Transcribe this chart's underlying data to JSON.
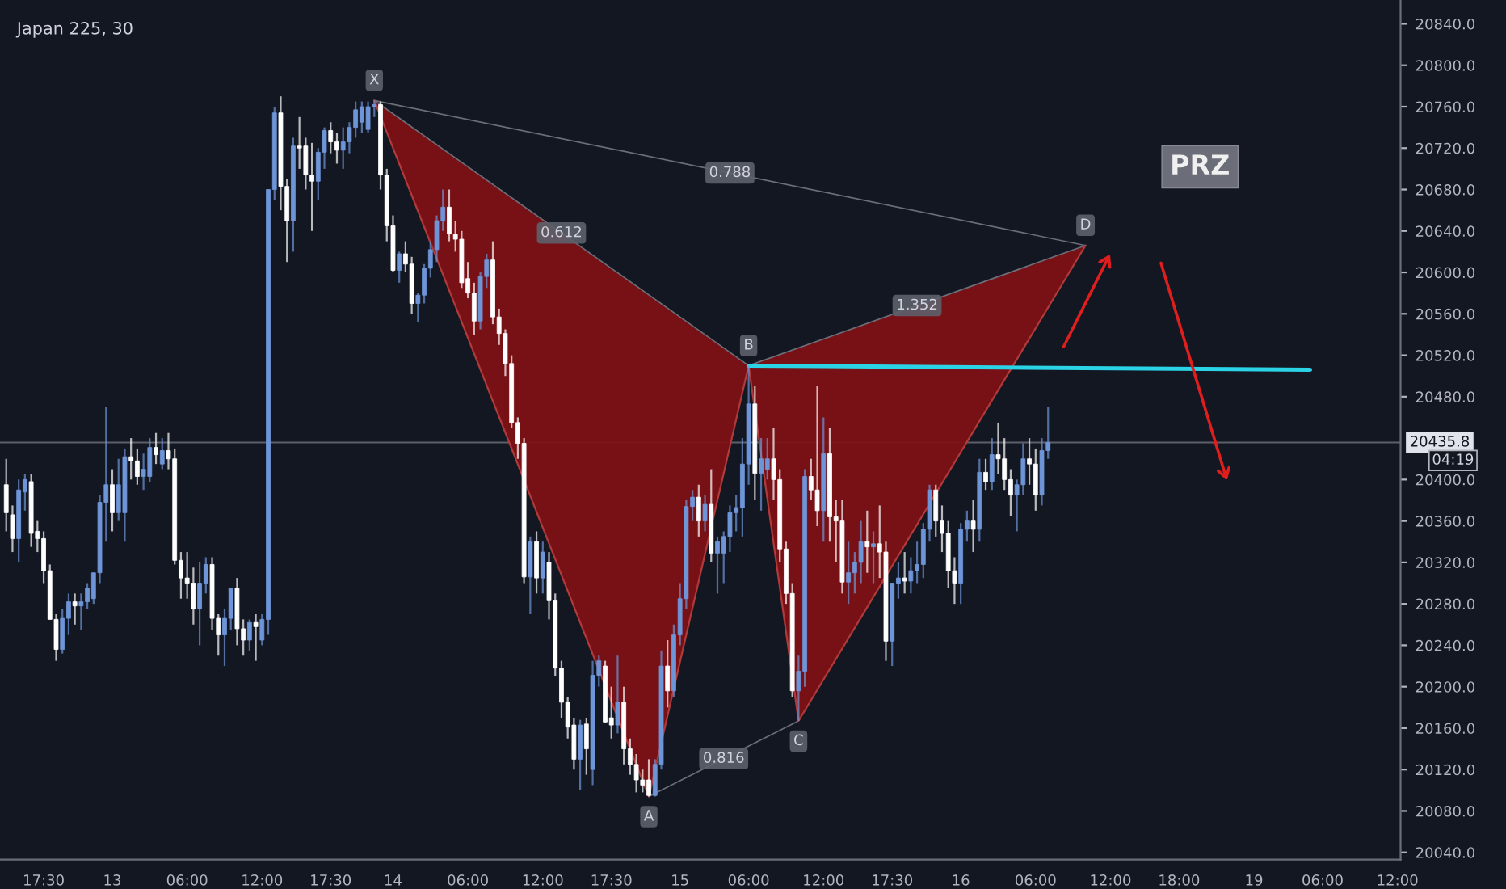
{
  "chart_data": {
    "type": "candlestick",
    "title": "Japan 225, 30",
    "categories": [
      null,
      null,
      null,
      null,
      null,
      null,
      "17:30",
      null,
      null,
      null,
      null,
      null,
      null,
      null,
      null,
      null,
      null,
      "13",
      null,
      null,
      null,
      null,
      null,
      null,
      null,
      null,
      null,
      null,
      null,
      "06:00",
      null,
      null,
      null,
      null,
      null,
      null,
      null,
      null,
      null,
      null,
      null,
      "12:00",
      null,
      null,
      null,
      null,
      null,
      null,
      null,
      null,
      null,
      null,
      "17:30",
      null,
      null,
      null,
      null,
      null,
      null,
      null,
      null,
      null,
      "14",
      null,
      null,
      null,
      null,
      null,
      null,
      null,
      null,
      null,
      null,
      null,
      "06:00",
      null,
      null,
      null,
      null,
      null,
      null,
      null,
      null,
      null,
      null,
      null,
      "12:00",
      null,
      null,
      null,
      null,
      null,
      null,
      null,
      null,
      null,
      null,
      "17:30",
      null,
      null,
      null,
      null,
      null,
      null,
      null,
      null,
      null,
      null,
      "15",
      null,
      null,
      null,
      null,
      null,
      null,
      null,
      null,
      null,
      null,
      "06:00",
      null,
      null,
      null,
      null,
      null,
      null,
      null,
      null,
      null,
      null,
      null,
      "12:00",
      null,
      null,
      null,
      null,
      null,
      null,
      null,
      null,
      null,
      null,
      "17:30",
      null,
      null,
      null,
      null,
      null,
      null,
      null,
      null,
      null,
      null,
      "16",
      null,
      null,
      null,
      null,
      null,
      null,
      null,
      null,
      null,
      null,
      null,
      "06:00",
      null,
      null,
      null,
      null,
      null,
      null,
      null,
      null,
      null,
      null,
      null,
      "12:00",
      null,
      null,
      null,
      null,
      null,
      null,
      null,
      null,
      null,
      null,
      "18:00",
      null,
      null,
      null,
      null,
      null,
      null,
      null,
      null,
      null,
      null,
      null,
      "19",
      null,
      null,
      null,
      null,
      null,
      null,
      null,
      null,
      null,
      null,
      "06:00",
      null,
      null,
      null,
      null,
      null,
      null,
      null,
      null,
      null,
      null,
      null,
      "12:00"
    ],
    "ohlc": [
      [
        20395,
        20420,
        20350,
        20368
      ],
      [
        20366,
        20375,
        20330,
        20343
      ],
      [
        20343,
        20400,
        20320,
        20390
      ],
      [
        20388,
        20405,
        20370,
        20400
      ],
      [
        20398,
        20405,
        20335,
        20348
      ],
      [
        20350,
        20360,
        20330,
        20343
      ],
      [
        20343,
        20350,
        20300,
        20312
      ],
      [
        20312,
        20318,
        20265,
        20265
      ],
      [
        20265,
        20270,
        20225,
        20236
      ],
      [
        20236,
        20275,
        20232,
        20266
      ],
      [
        20266,
        20290,
        20250,
        20282
      ],
      [
        20282,
        20290,
        20260,
        20278
      ],
      [
        20278,
        20290,
        20255,
        20282
      ],
      [
        20282,
        20300,
        20275,
        20295
      ],
      [
        20285,
        20310,
        20280,
        20310
      ],
      [
        20310,
        20385,
        20300,
        20378
      ],
      [
        20378,
        20470,
        20340,
        20395
      ],
      [
        20395,
        20410,
        20350,
        20368
      ],
      [
        20368,
        20420,
        20360,
        20395
      ],
      [
        20368,
        20430,
        20340,
        20422
      ],
      [
        20422,
        20440,
        20400,
        20418
      ],
      [
        20418,
        20430,
        20395,
        20403
      ],
      [
        20403,
        20425,
        20390,
        20410
      ],
      [
        20403,
        20440,
        20398,
        20431
      ],
      [
        20431,
        20445,
        20415,
        20424
      ],
      [
        20415,
        20440,
        20410,
        20428
      ],
      [
        20428,
        20445,
        20410,
        20420
      ],
      [
        20420,
        20430,
        20318,
        20322
      ],
      [
        20322,
        20330,
        20285,
        20305
      ],
      [
        20305,
        20330,
        20285,
        20300
      ],
      [
        20300,
        20315,
        20260,
        20275
      ],
      [
        20275,
        20320,
        20240,
        20300
      ],
      [
        20300,
        20325,
        20290,
        20318
      ],
      [
        20318,
        20325,
        20255,
        20266
      ],
      [
        20266,
        20270,
        20230,
        20250
      ],
      [
        20250,
        20275,
        20220,
        20266
      ],
      [
        20266,
        20295,
        20255,
        20295
      ],
      [
        20295,
        20305,
        20240,
        20256
      ],
      [
        20256,
        20265,
        20230,
        20245
      ],
      [
        20245,
        20265,
        20235,
        20262
      ],
      [
        20262,
        20270,
        20225,
        20258
      ],
      [
        20245,
        20270,
        20240,
        20265
      ],
      [
        20265,
        20680,
        20250,
        20680
      ],
      [
        20680,
        20760,
        20670,
        20754
      ],
      [
        20754,
        20770,
        20660,
        20683
      ],
      [
        20683,
        20690,
        20610,
        20650
      ],
      [
        20650,
        20730,
        20620,
        20722
      ],
      [
        20722,
        20750,
        20700,
        20720
      ],
      [
        20722,
        20730,
        20680,
        20694
      ],
      [
        20694,
        20725,
        20640,
        20688
      ],
      [
        20688,
        20720,
        20670,
        20716
      ],
      [
        20716,
        20740,
        20700,
        20737
      ],
      [
        20737,
        20745,
        20715,
        20726
      ],
      [
        20726,
        20735,
        20705,
        20718
      ],
      [
        20718,
        20740,
        20700,
        20726
      ],
      [
        20726,
        20745,
        20715,
        20740
      ],
      [
        20740,
        20765,
        20730,
        20757
      ],
      [
        20745,
        20765,
        20735,
        20760
      ],
      [
        20738,
        20765,
        20735,
        20760
      ],
      [
        20760,
        20766,
        20750,
        20762
      ],
      [
        20762,
        20765,
        20680,
        20694
      ],
      [
        20694,
        20700,
        20630,
        20645
      ],
      [
        20645,
        20655,
        20600,
        20602
      ],
      [
        20602,
        20620,
        20590,
        20618
      ],
      [
        20618,
        20630,
        20600,
        20608
      ],
      [
        20608,
        20615,
        20560,
        20570
      ],
      [
        20570,
        20580,
        20552,
        20578
      ],
      [
        20578,
        20608,
        20570,
        20604
      ],
      [
        20604,
        20630,
        20595,
        20622
      ],
      [
        20622,
        20655,
        20610,
        20650
      ],
      [
        20650,
        20680,
        20640,
        20663
      ],
      [
        20663,
        20680,
        20630,
        20637
      ],
      [
        20637,
        20650,
        20620,
        20632
      ],
      [
        20632,
        20640,
        20585,
        20590
      ],
      [
        20594,
        20610,
        20575,
        20580
      ],
      [
        20580,
        20590,
        20540,
        20553
      ],
      [
        20553,
        20600,
        20545,
        20596
      ],
      [
        20596,
        20618,
        20585,
        20612
      ],
      [
        20612,
        20630,
        20550,
        20557
      ],
      [
        20557,
        20565,
        20530,
        20541
      ],
      [
        20541,
        20545,
        20500,
        20512
      ],
      [
        20512,
        20520,
        20450,
        20455
      ],
      [
        20455,
        20460,
        20420,
        20435
      ],
      [
        20435,
        20440,
        20300,
        20306
      ],
      [
        20306,
        20345,
        20270,
        20340
      ],
      [
        20340,
        20350,
        20290,
        20305
      ],
      [
        20305,
        20340,
        20290,
        20330
      ],
      [
        20320,
        20330,
        20265,
        20283
      ],
      [
        20283,
        20290,
        20210,
        20218
      ],
      [
        20218,
        20225,
        20170,
        20185
      ],
      [
        20185,
        20190,
        20150,
        20161
      ],
      [
        20163,
        20170,
        20120,
        20130
      ],
      [
        20130,
        20168,
        20100,
        20163
      ],
      [
        20164,
        20170,
        20115,
        20140
      ],
      [
        20120,
        20225,
        20105,
        20211
      ],
      [
        20211,
        20230,
        20200,
        20225
      ],
      [
        20220,
        20225,
        20165,
        20166
      ],
      [
        20170,
        20200,
        20150,
        20163
      ],
      [
        20163,
        20230,
        20155,
        20185
      ],
      [
        20185,
        20200,
        20125,
        20140
      ],
      [
        20140,
        20150,
        20115,
        20125
      ],
      [
        20125,
        20135,
        20098,
        20110
      ],
      [
        20110,
        20120,
        20098,
        20105
      ],
      [
        20110,
        20130,
        20094,
        20095
      ],
      [
        20095,
        20130,
        20094,
        20125
      ],
      [
        20125,
        20235,
        20120,
        20220
      ],
      [
        20220,
        20245,
        20180,
        20196
      ],
      [
        20196,
        20260,
        20190,
        20250
      ],
      [
        20250,
        20300,
        20240,
        20285
      ],
      [
        20285,
        20380,
        20275,
        20374
      ],
      [
        20374,
        20390,
        20360,
        20383
      ],
      [
        20383,
        20395,
        20345,
        20360
      ],
      [
        20360,
        20385,
        20350,
        20376
      ],
      [
        20376,
        20410,
        20320,
        20329
      ],
      [
        20329,
        20345,
        20290,
        20340
      ],
      [
        20329,
        20350,
        20300,
        20345
      ],
      [
        20345,
        20375,
        20330,
        20368
      ],
      [
        20368,
        20385,
        20350,
        20373
      ],
      [
        20373,
        20440,
        20345,
        20415
      ],
      [
        20415,
        20510,
        20395,
        20473
      ],
      [
        20473,
        20490,
        20380,
        20406
      ],
      [
        20406,
        20440,
        20370,
        20420
      ],
      [
        20410,
        20440,
        20400,
        20420
      ],
      [
        20420,
        20450,
        20380,
        20400
      ],
      [
        20400,
        20410,
        20320,
        20333
      ],
      [
        20333,
        20340,
        20280,
        20290
      ],
      [
        20290,
        20300,
        20190,
        20196
      ],
      [
        20196,
        20230,
        20167,
        20215
      ],
      [
        20215,
        20410,
        20200,
        20403
      ],
      [
        20403,
        20420,
        20380,
        20390
      ],
      [
        20390,
        20490,
        20355,
        20370
      ],
      [
        20370,
        20460,
        20340,
        20425
      ],
      [
        20425,
        20450,
        20340,
        20364
      ],
      [
        20364,
        20380,
        20320,
        20360
      ],
      [
        20360,
        20380,
        20290,
        20301
      ],
      [
        20301,
        20340,
        20280,
        20310
      ],
      [
        20310,
        20330,
        20290,
        20320
      ],
      [
        20320,
        20360,
        20300,
        20340
      ],
      [
        20340,
        20370,
        20310,
        20335
      ],
      [
        20335,
        20350,
        20300,
        20338
      ],
      [
        20338,
        20375,
        20305,
        20330
      ],
      [
        20330,
        20340,
        20225,
        20244
      ],
      [
        20244,
        20300,
        20220,
        20300
      ],
      [
        20300,
        20320,
        20285,
        20305
      ],
      [
        20305,
        20330,
        20290,
        20302
      ],
      [
        20302,
        20325,
        20290,
        20312
      ],
      [
        20312,
        20340,
        20300,
        20318
      ],
      [
        20318,
        20358,
        20305,
        20352
      ],
      [
        20352,
        20395,
        20340,
        20390
      ],
      [
        20390,
        20395,
        20345,
        20360
      ],
      [
        20360,
        20375,
        20330,
        20348
      ],
      [
        20348,
        20360,
        20295,
        20312
      ],
      [
        20312,
        20325,
        20280,
        20300
      ],
      [
        20300,
        20358,
        20280,
        20352
      ],
      [
        20352,
        20370,
        20340,
        20360
      ],
      [
        20360,
        20380,
        20330,
        20352
      ],
      [
        20352,
        20420,
        20340,
        20407
      ],
      [
        20407,
        20420,
        20390,
        20398
      ],
      [
        20398,
        20440,
        20390,
        20424
      ],
      [
        20424,
        20455,
        20405,
        20420
      ],
      [
        20420,
        20440,
        20390,
        20400
      ],
      [
        20400,
        20410,
        20365,
        20385
      ],
      [
        20385,
        20400,
        20350,
        20395
      ],
      [
        20395,
        20435,
        20385,
        20420
      ],
      [
        20420,
        20440,
        20395,
        20415
      ],
      [
        20415,
        20430,
        20370,
        20385
      ],
      [
        20385,
        20440,
        20375,
        20428
      ],
      [
        20428,
        20470,
        20420,
        20435.8
      ],
      null,
      null,
      null,
      null,
      null,
      null,
      null,
      null,
      null,
      null,
      null,
      null,
      null,
      null,
      null,
      null,
      null,
      null,
      null,
      null,
      null,
      null,
      null,
      null,
      null,
      null,
      null,
      null,
      null,
      null,
      null,
      null,
      null,
      null,
      null,
      null,
      null,
      null,
      null,
      null,
      null,
      null,
      null,
      null,
      null,
      null,
      null,
      null,
      null,
      null,
      null,
      null,
      null,
      null,
      null,
      null
    ],
    "colors": [
      "#ffffff",
      "#ffffff",
      "#6f95d9",
      "#6f95d9",
      "#ffffff",
      "#ffffff",
      "#ffffff",
      "#ffffff",
      "#ffffff",
      "#6f95d9",
      "#6f95d9",
      "#ffffff",
      "#6f95d9",
      "#6f95d9",
      "#6f95d9",
      "#6f95d9",
      "#6f95d9",
      "#ffffff",
      "#6f95d9",
      "#6f95d9",
      "#ffffff",
      "#ffffff",
      "#6f95d9",
      "#6f95d9",
      "#ffffff",
      "#6f95d9",
      "#ffffff",
      "#ffffff",
      "#ffffff",
      "#ffffff",
      "#ffffff",
      "#6f95d9",
      "#6f95d9",
      "#ffffff",
      "#ffffff",
      "#6f95d9",
      "#6f95d9",
      "#ffffff",
      "#ffffff",
      "#6f95d9",
      "#ffffff",
      "#6f95d9",
      "#6f95d9",
      "#6f95d9",
      "#ffffff",
      "#ffffff",
      "#6f95d9",
      "#ffffff",
      "#ffffff",
      "#ffffff",
      "#6f95d9",
      "#6f95d9",
      "#ffffff",
      "#ffffff",
      "#6f95d9",
      "#6f95d9",
      "#6f95d9",
      "#6f95d9",
      "#6f95d9",
      "#6f95d9",
      "#ffffff",
      "#ffffff",
      "#ffffff",
      "#6f95d9",
      "#ffffff",
      "#ffffff",
      "#6f95d9",
      "#6f95d9",
      "#6f95d9",
      "#6f95d9",
      "#6f95d9",
      "#ffffff",
      "#ffffff",
      "#ffffff",
      "#ffffff",
      "#ffffff",
      "#6f95d9",
      "#6f95d9",
      "#ffffff",
      "#ffffff",
      "#ffffff",
      "#ffffff",
      "#ffffff",
      "#ffffff",
      "#6f95d9",
      "#ffffff",
      "#6f95d9",
      "#ffffff",
      "#ffffff",
      "#ffffff",
      "#ffffff",
      "#ffffff",
      "#6f95d9",
      "#ffffff",
      "#6f95d9",
      "#6f95d9",
      "#ffffff",
      "#ffffff",
      "#6f95d9",
      "#ffffff",
      "#ffffff",
      "#ffffff",
      "#ffffff",
      "#ffffff",
      "#6f95d9",
      "#6f95d9",
      "#ffffff",
      "#6f95d9",
      "#6f95d9",
      "#6f95d9",
      "#6f95d9",
      "#ffffff",
      "#6f95d9",
      "#ffffff",
      "#6f95d9",
      "#6f95d9",
      "#6f95d9",
      "#6f95d9",
      "#6f95d9",
      "#6f95d9",
      "#ffffff",
      "#6f95d9",
      "#6f95d9",
      "#ffffff",
      "#ffffff",
      "#ffffff",
      "#ffffff",
      "#6f95d9",
      "#6f95d9",
      "#ffffff",
      "#ffffff",
      "#6f95d9",
      "#ffffff",
      "#ffffff",
      "#ffffff",
      "#6f95d9",
      "#6f95d9",
      "#6f95d9",
      "#ffffff",
      "#6f95d9",
      "#ffffff",
      "#ffffff",
      "#6f95d9",
      "#6f95d9",
      "#ffffff",
      "#6f95d9",
      "#6f95d9",
      "#6f95d9",
      "#6f95d9",
      "#ffffff",
      "#ffffff",
      "#ffffff",
      "#ffffff",
      "#6f95d9",
      "#6f95d9",
      "#ffffff",
      "#6f95d9",
      "#ffffff",
      "#6f95d9",
      "#ffffff",
      "#ffffff",
      "#ffffff",
      "#6f95d9",
      "#6f95d9",
      "#ffffff",
      "#ffffff",
      "#6f95d9",
      "#6f95d9",
      null,
      null,
      null,
      null,
      null,
      null,
      null,
      null,
      null,
      null,
      null,
      null,
      null,
      null,
      null,
      null,
      null,
      null,
      null,
      null,
      null,
      null,
      null,
      null,
      null,
      null,
      null,
      null,
      null,
      null,
      null,
      null,
      null,
      null,
      null,
      null,
      null,
      null,
      null,
      null,
      null,
      null,
      null,
      null,
      null,
      null,
      null,
      null,
      null,
      null,
      null,
      null,
      null,
      null,
      null,
      null
    ],
    "series": [
      {
        "type": "line",
        "color": "#b03a3a",
        "values": [
          null,
          null,
          null,
          null,
          null,
          null,
          null,
          null,
          null,
          null,
          null,
          null,
          null,
          null,
          null,
          null,
          null,
          null,
          null,
          null,
          null,
          null,
          null,
          null,
          null,
          null,
          null,
          null,
          null,
          null,
          null,
          null,
          null,
          null,
          null,
          null,
          null,
          null,
          null,
          null,
          null,
          null,
          null,
          null,
          null,
          null,
          null,
          null,
          null,
          null,
          null,
          null,
          null,
          null,
          null,
          null,
          null,
          null,
          null,
          20766,
          null,
          null,
          null,
          null,
          null,
          null,
          null,
          null,
          null,
          null,
          null,
          null,
          null,
          null,
          null,
          null,
          null,
          null,
          null,
          null,
          null,
          null,
          null,
          null,
          null,
          null,
          null,
          null,
          null,
          null,
          null,
          null,
          null,
          null,
          null,
          null,
          null,
          null,
          null,
          null,
          null,
          null,
          null,
          20094,
          null,
          null,
          null,
          null,
          null,
          null,
          null,
          null,
          null,
          null,
          null,
          null,
          null,
          null,
          null,
          20510,
          null,
          null,
          null,
          null,
          null,
          null,
          null,
          20167,
          null,
          null,
          null,
          null,
          null,
          null,
          null,
          null,
          null,
          null,
          null,
          null,
          null,
          null,
          null,
          null,
          null,
          null,
          null,
          null,
          null,
          null,
          null,
          null,
          null,
          null,
          null,
          null,
          null,
          null,
          null,
          null,
          null,
          null,
          null,
          null,
          null,
          null,
          null,
          null,
          null,
          null,
          null,
          null,
          null,
          20626,
          null,
          null,
          null,
          null,
          null,
          null,
          null,
          null,
          null,
          null,
          null,
          null,
          null,
          null,
          null,
          null,
          null,
          null,
          null,
          null,
          null,
          null,
          null,
          null,
          null,
          null,
          null,
          null,
          null,
          null,
          null,
          null,
          null,
          null,
          null,
          null,
          null,
          null,
          null,
          null,
          null,
          null,
          null,
          null,
          null,
          null,
          null,
          null,
          null,
          null
        ]
      },
      {
        "type": "line",
        "color": "#2ad4e6",
        "values": [
          null,
          null,
          null,
          null,
          null,
          null,
          null,
          null,
          null,
          null,
          null,
          null,
          null,
          null,
          null,
          null,
          null,
          null,
          null,
          null,
          null,
          null,
          null,
          null,
          null,
          null,
          null,
          null,
          null,
          null,
          null,
          null,
          null,
          null,
          null,
          null,
          null,
          null,
          null,
          null,
          null,
          null,
          null,
          null,
          null,
          null,
          null,
          null,
          null,
          null,
          null,
          null,
          null,
          null,
          null,
          null,
          null,
          null,
          null,
          null,
          null,
          null,
          null,
          null,
          null,
          null,
          null,
          null,
          null,
          null,
          null,
          null,
          null,
          null,
          null,
          null,
          null,
          null,
          null,
          null,
          null,
          null,
          null,
          null,
          null,
          null,
          null,
          null,
          null,
          null,
          null,
          null,
          null,
          null,
          null,
          null,
          null,
          null,
          null,
          null,
          null,
          null,
          null,
          null,
          null,
          null,
          null,
          null,
          null,
          null,
          null,
          null,
          null,
          null,
          null,
          null,
          null,
          null,
          null,
          20510,
          null,
          null,
          null,
          null,
          null,
          null,
          null,
          null,
          null,
          null,
          null,
          null,
          null,
          null,
          null,
          null,
          null,
          null,
          null,
          null,
          null,
          null,
          null,
          null,
          null,
          null,
          null,
          null,
          null,
          null,
          null,
          null,
          null,
          null,
          null,
          null,
          null,
          null,
          null,
          null,
          null,
          null,
          null,
          null,
          null,
          null,
          null,
          null,
          null,
          null,
          null,
          null,
          null,
          null,
          null,
          null,
          null,
          null,
          null,
          null,
          null,
          null,
          null,
          null,
          null,
          null,
          null,
          null,
          null,
          null,
          null,
          null,
          null,
          null,
          null,
          null,
          null,
          null,
          null,
          null,
          null,
          null,
          null,
          null,
          null,
          null,
          null,
          null,
          null,
          20506,
          null,
          null,
          null,
          null,
          null,
          null,
          null,
          null,
          null,
          null,
          null,
          null,
          null,
          null
        ]
      }
    ],
    "ref_lines": [
      {
        "axis": "y",
        "value": 20435.8,
        "label": "20435.8",
        "color": "#5d606b"
      }
    ],
    "annotations": [
      {
        "text": "X",
        "y": 20766
      },
      {
        "text": "A",
        "y": 20094
      },
      {
        "text": "B",
        "y": 20510
      },
      {
        "text": "C",
        "y": 20167
      },
      {
        "text": "D",
        "y": 20626
      },
      "0.612",
      "0.788",
      "1.352",
      "0.816",
      "PRZ",
      "04:19"
    ],
    "ylim": [
      20033,
      20863
    ],
    "yticks": [
      {
        "value": 20040,
        "label": "20040.0"
      },
      {
        "value": 20080,
        "label": "20080.0"
      },
      {
        "value": 20120,
        "label": "20120.0"
      },
      {
        "value": 20160,
        "label": "20160.0"
      },
      {
        "value": 20200,
        "label": "20200.0"
      },
      {
        "value": 20240,
        "label": "20240.0"
      },
      {
        "value": 20280,
        "label": "20280.0"
      },
      {
        "value": 20320,
        "label": "20320.0"
      },
      {
        "value": 20360,
        "label": "20360.0"
      },
      {
        "value": 20400,
        "label": "20400.0"
      },
      {
        "value": 20480,
        "label": "20480.0"
      },
      {
        "value": 20520,
        "label": "20520.0"
      },
      {
        "value": 20560,
        "label": "20560.0"
      },
      {
        "value": 20600,
        "label": "20600.0"
      },
      {
        "value": 20640,
        "label": "20640.0"
      },
      {
        "value": 20680,
        "label": "20680.0"
      },
      {
        "value": 20720,
        "label": "20720.0"
      },
      {
        "value": 20760,
        "label": "20760.0"
      },
      {
        "value": 20800,
        "label": "20800.0"
      },
      {
        "value": 20840,
        "label": "20840.0"
      }
    ],
    "grid": false
  }
}
